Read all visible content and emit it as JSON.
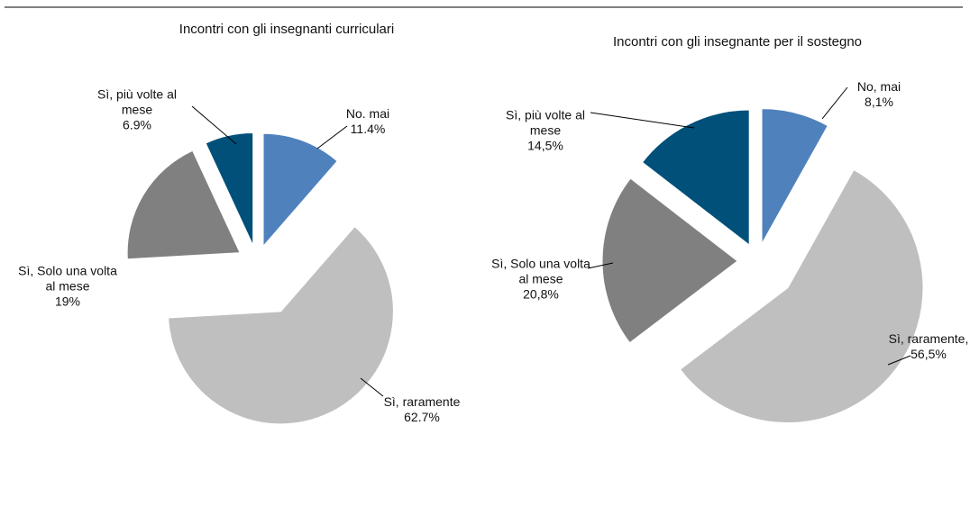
{
  "chart_data": [
    {
      "type": "pie",
      "title": "Incontri con gli insegnanti curriculari",
      "categories": [
        "No. mai",
        "Sì, raramente",
        "Sì, Solo una volta al mese",
        "Sì, più volte al mese"
      ],
      "values": [
        11.4,
        62.7,
        19,
        6.9
      ],
      "value_labels": [
        "11.4%",
        "62.7%",
        "19%",
        "6.9%"
      ],
      "colors": [
        "#4f81bd",
        "#bfbfbf",
        "#808080",
        "#00507a"
      ]
    },
    {
      "type": "pie",
      "title": "Incontri con gli insegnante per il sostegno",
      "categories": [
        "No, mai",
        "Sì, raramente,",
        "Sì, Solo una volta al mese",
        "Sì, più volte al mese"
      ],
      "values": [
        8.1,
        56.5,
        20.8,
        14.5
      ],
      "value_labels": [
        "8,1%",
        "56,5%",
        "20,8%",
        "14,5%"
      ],
      "colors": [
        "#4f81bd",
        "#bfbfbf",
        "#808080",
        "#00507a"
      ]
    }
  ]
}
